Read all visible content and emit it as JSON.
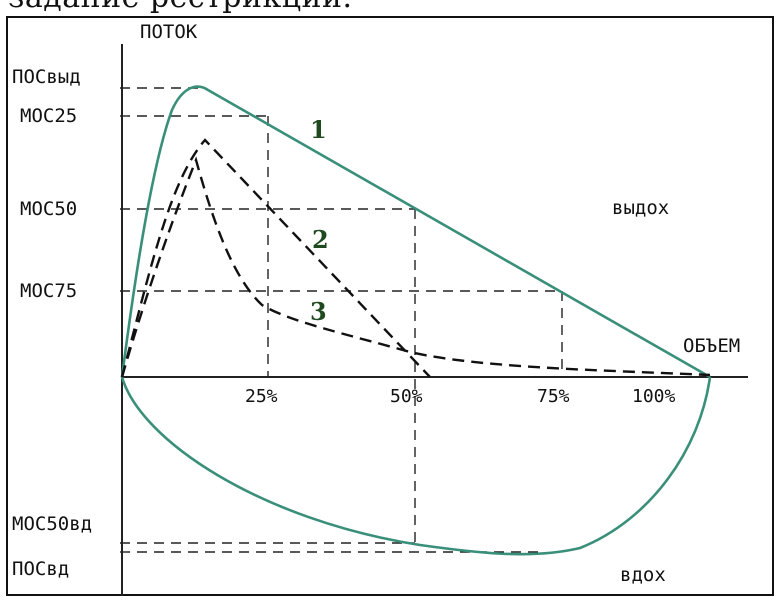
{
  "top_text": "задание рестрикции.",
  "axis": {
    "y_label": "ПОТОК",
    "x_label": "ОБЪЕМ"
  },
  "y_labels": {
    "pos_vyd": "ПОСвыд",
    "mos25": "МОС25",
    "mos50": "МОС50",
    "mos75": "МОС75",
    "mos50vd": "МОС50вд",
    "pos_vd": "ПОСвд"
  },
  "x_ticks": [
    "25%",
    "50%",
    "75%",
    "100%"
  ],
  "region_labels": {
    "exhale": "выдох",
    "inhale": "вдох"
  },
  "curve_labels": [
    "1",
    "2",
    "3"
  ],
  "colors": {
    "curve": "#3a8f7a",
    "axis": "#222222",
    "dashed": "#111111",
    "number": "#1f4a1f"
  }
}
